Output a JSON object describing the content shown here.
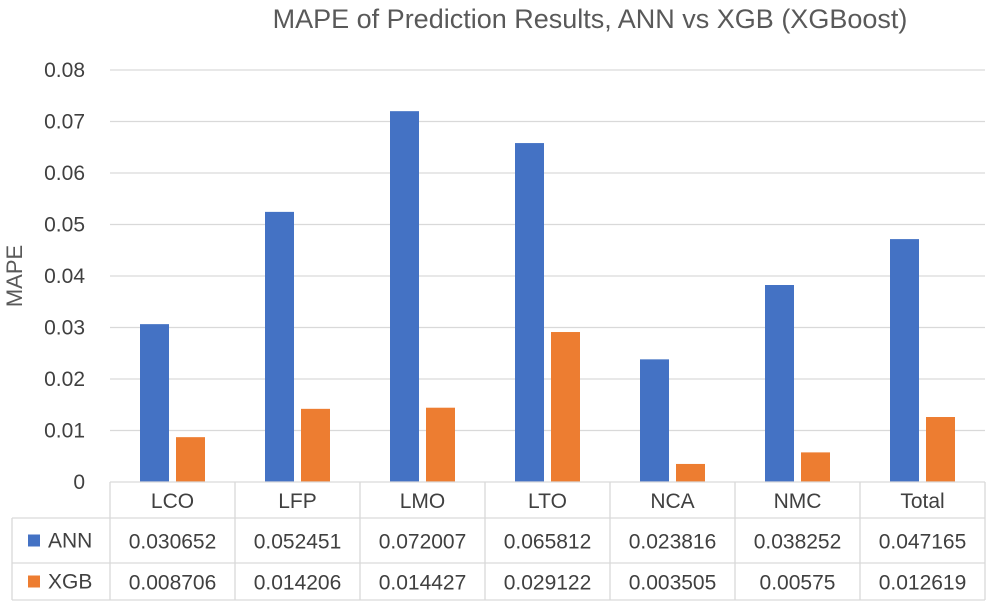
{
  "chart_data": {
    "type": "bar",
    "title": "MAPE of Prediction Results, ANN vs XGB (XGBoost)",
    "ylabel": "MAPE",
    "xlabel": "",
    "ylim": [
      0,
      0.08
    ],
    "yticks": [
      "0",
      "0.01",
      "0.02",
      "0.03",
      "0.04",
      "0.05",
      "0.06",
      "0.07",
      "0.08"
    ],
    "grid": true,
    "legend_placement": "data-table",
    "categories": [
      "LCO",
      "LFP",
      "LMO",
      "LTO",
      "NCA",
      "NMC",
      "Total"
    ],
    "series": [
      {
        "name": "ANN",
        "color": "#4472c4",
        "values": [
          0.030652,
          0.052451,
          0.072007,
          0.065812,
          0.023816,
          0.038252,
          0.047165
        ],
        "labels": [
          "0.030652",
          "0.052451",
          "0.072007",
          "0.065812",
          "0.023816",
          "0.038252",
          "0.047165"
        ]
      },
      {
        "name": "XGB",
        "color": "#ed7d31",
        "values": [
          0.008706,
          0.014206,
          0.014427,
          0.029122,
          0.003505,
          0.00575,
          0.012619
        ],
        "labels": [
          "0.008706",
          "0.014206",
          "0.014427",
          "0.029122",
          "0.003505",
          "0.00575",
          "0.012619"
        ]
      }
    ]
  }
}
